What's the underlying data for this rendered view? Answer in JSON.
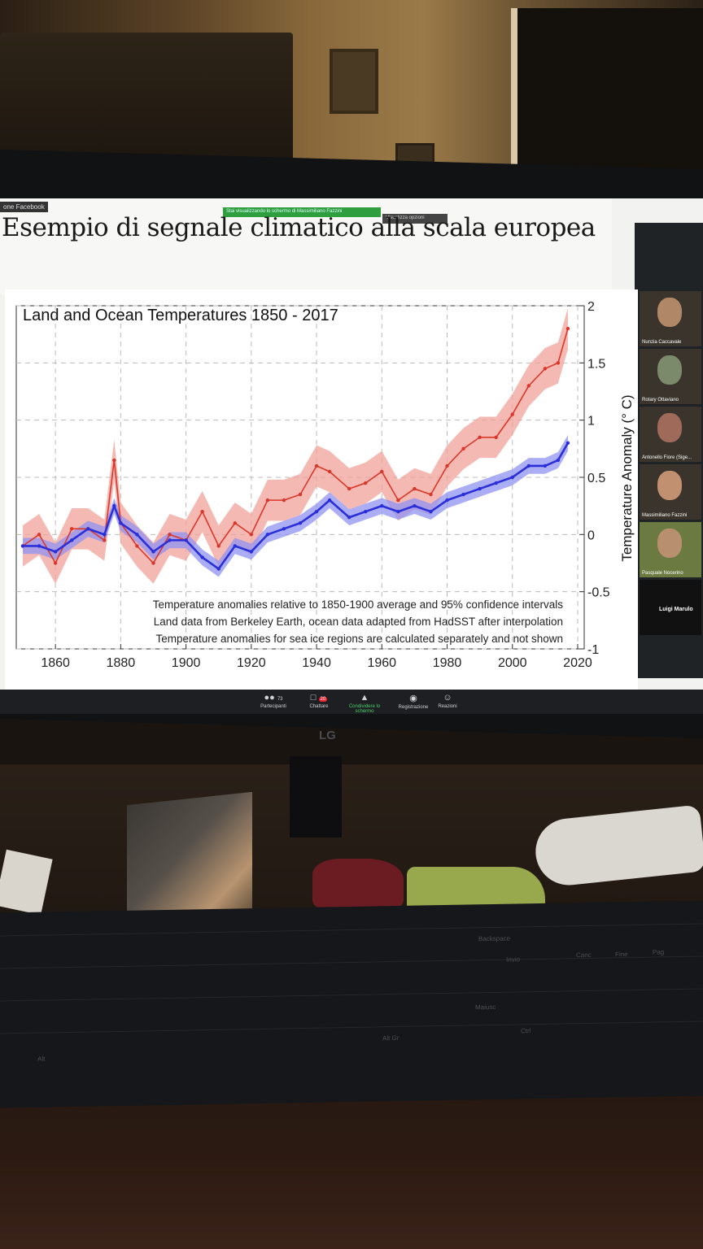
{
  "slide": {
    "title": "Esempio di segnale climatico alla scala europea",
    "source_tag": "one Facebook",
    "share_banner": "Stai visualizzando lo schermo di Massimiliano Fazzini",
    "view_options": "Visualizza opzioni"
  },
  "chart_data": {
    "type": "line",
    "title": "Land and Ocean Temperatures 1850 - 2017",
    "xlabel": "",
    "ylabel": "Temperature Anomaly (° C)",
    "xlim": [
      1848,
      2022
    ],
    "ylim": [
      -1,
      2
    ],
    "x_ticks": [
      "1860",
      "1880",
      "1900",
      "1920",
      "1940",
      "1960",
      "1980",
      "2000",
      "2020"
    ],
    "y_ticks": [
      "2",
      "1.5",
      "1",
      "0.5",
      "0",
      "-0.5",
      "-1"
    ],
    "grid": true,
    "notes": [
      "Temperature anomalies relative to 1850-1900 average and 95% confidence intervals",
      "Land data from Berkeley Earth, ocean data adapted from HadSST after interpolation",
      "Temperature anomalies for sea ice regions are calculated separately and not shown"
    ],
    "colors": {
      "land": "#d9372a",
      "land_band": "#f2a19a",
      "ocean": "#2a2fd9",
      "ocean_band": "#8f93f2"
    },
    "series": [
      {
        "key": "land",
        "x": [
          1850,
          1855,
          1860,
          1865,
          1870,
          1875,
          1878,
          1880,
          1885,
          1890,
          1895,
          1900,
          1905,
          1910,
          1915,
          1920,
          1925,
          1930,
          1935,
          1940,
          1944,
          1950,
          1955,
          1960,
          1965,
          1970,
          1975,
          1980,
          1985,
          1990,
          1995,
          2000,
          2005,
          2010,
          2014,
          2017
        ],
        "values": [
          -0.1,
          0.0,
          -0.25,
          0.05,
          0.05,
          -0.05,
          0.65,
          0.1,
          -0.1,
          -0.25,
          0.0,
          -0.05,
          0.2,
          -0.1,
          0.1,
          0.0,
          0.3,
          0.3,
          0.35,
          0.6,
          0.55,
          0.4,
          0.45,
          0.55,
          0.3,
          0.4,
          0.35,
          0.6,
          0.75,
          0.85,
          0.85,
          1.05,
          1.3,
          1.45,
          1.5,
          1.8
        ]
      },
      {
        "key": "ocean",
        "x": [
          1850,
          1855,
          1860,
          1865,
          1870,
          1875,
          1878,
          1880,
          1885,
          1890,
          1895,
          1900,
          1905,
          1910,
          1915,
          1920,
          1925,
          1930,
          1935,
          1940,
          1944,
          1950,
          1955,
          1960,
          1965,
          1970,
          1975,
          1980,
          1985,
          1990,
          1995,
          2000,
          2005,
          2010,
          2014,
          2017
        ],
        "values": [
          -0.1,
          -0.1,
          -0.15,
          -0.05,
          0.05,
          0.0,
          0.25,
          0.1,
          0.0,
          -0.15,
          -0.05,
          -0.05,
          -0.2,
          -0.3,
          -0.1,
          -0.15,
          0.0,
          0.05,
          0.1,
          0.2,
          0.3,
          0.15,
          0.2,
          0.25,
          0.2,
          0.25,
          0.2,
          0.3,
          0.35,
          0.4,
          0.45,
          0.5,
          0.6,
          0.6,
          0.65,
          0.8
        ]
      }
    ]
  },
  "participants": [
    {
      "name": "Nunzia Caccavale"
    },
    {
      "name": "Rotary Ottaviano"
    },
    {
      "name": "Antonello Fiore (Sige..."
    },
    {
      "name": "Massimiliano Fazzini"
    },
    {
      "name": "Pasquale Nocerino"
    },
    {
      "name": "Luigi Marulo"
    }
  ],
  "toolbar": {
    "participants_label": "Partecipanti",
    "participants_count": "73",
    "chat_label": "Chattare",
    "chat_badge": "20",
    "share_label": "Condividere lo schermo",
    "record_label": "Registrazione",
    "reactions_label": "Reazioni"
  },
  "monitor_brand": "LG",
  "keyboard_labels": [
    "Backspace",
    "Invio",
    "Maiusc",
    "Canc",
    "Fine",
    "Pag",
    "Alt Gr",
    "Ctrl",
    "Alt"
  ]
}
